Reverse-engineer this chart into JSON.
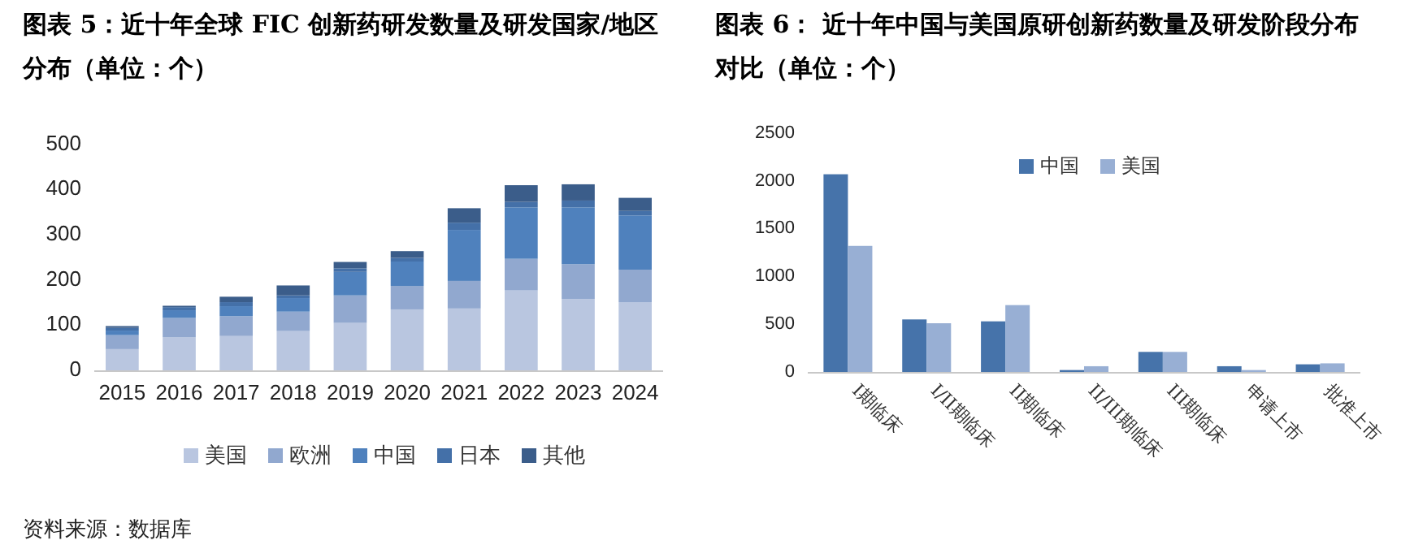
{
  "chart_data": [
    {
      "type": "bar",
      "title": "图表 5：近十年全球 FIC 创新药研发数量及研发国家/地区分布（单位：个）",
      "categories": [
        "2015",
        "2016",
        "2017",
        "2018",
        "2019",
        "2020",
        "2021",
        "2022",
        "2023",
        "2024"
      ],
      "stacked": true,
      "ylim": [
        0,
        500
      ],
      "yticks": [
        0,
        100,
        200,
        300,
        400,
        500
      ],
      "legend": "bottom",
      "annotations": [
        "资料来源：数据库"
      ],
      "series": [
        {
          "name": "美国",
          "color": "#b9c6e0",
          "values": [
            47,
            73,
            76,
            87,
            105,
            135,
            137,
            177,
            158,
            151
          ]
        },
        {
          "name": "欧洲",
          "color": "#91a8cf",
          "values": [
            31,
            43,
            44,
            43,
            61,
            52,
            61,
            70,
            77,
            72
          ]
        },
        {
          "name": "中国",
          "color": "#4f81bd",
          "values": [
            10,
            17,
            22,
            30,
            52,
            54,
            113,
            114,
            126,
            120
          ]
        },
        {
          "name": "日本",
          "color": "#4470a8",
          "values": [
            6,
            7,
            9,
            6,
            8,
            8,
            16,
            12,
            15,
            10
          ]
        },
        {
          "name": "其他",
          "color": "#3b5d8a",
          "values": [
            4,
            3,
            12,
            22,
            14,
            15,
            32,
            37,
            36,
            29
          ]
        }
      ]
    },
    {
      "type": "bar",
      "title": "图表 6：  近十年中国与美国原研创新药数量及研发阶段分布对比（单位：个）",
      "categories": [
        "I期临床",
        "I/II期临床",
        "II期临床",
        "II/III期临床",
        "III期临床",
        "申请上市",
        "批准上市"
      ],
      "ylim": [
        0,
        2500
      ],
      "yticks": [
        0,
        500,
        1000,
        1500,
        2000,
        2500
      ],
      "legend": "top",
      "series": [
        {
          "name": "中国",
          "color": "#4673aa",
          "values": [
            2070,
            550,
            530,
            20,
            210,
            60,
            80
          ]
        },
        {
          "name": "美国",
          "color": "#98afd4",
          "values": [
            1320,
            510,
            700,
            60,
            210,
            20,
            90
          ]
        }
      ]
    }
  ]
}
